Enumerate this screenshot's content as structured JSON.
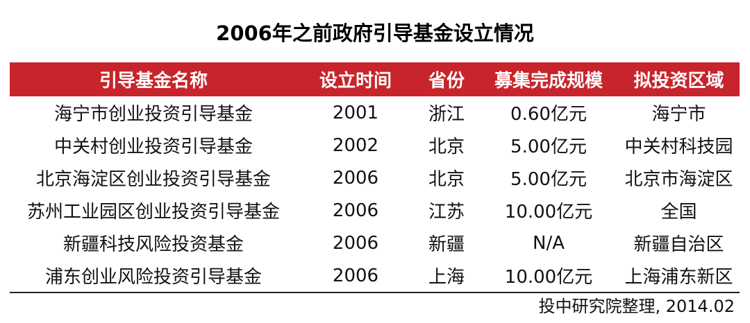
{
  "title": "2006年之前政府引导基金设立情况",
  "table": {
    "headers": [
      "引导基金名称",
      "设立时间",
      "省份",
      "募集完成规模",
      "拟投资区域"
    ],
    "rows": [
      [
        "海宁市创业投资引导基金",
        "2001",
        "浙江",
        "0.60亿元",
        "海宁市"
      ],
      [
        "中关村创业投资引导基金",
        "2002",
        "北京",
        "5.00亿元",
        "中关村科技园"
      ],
      [
        "北京海淀区创业投资引导基金",
        "2006",
        "北京",
        "5.00亿元",
        "北京市海淀区"
      ],
      [
        "苏州工业园区创业投资引导基金",
        "2006",
        "江苏",
        "10.00亿元",
        "全国"
      ],
      [
        "新疆科技风险投资基金",
        "2006",
        "新疆",
        "N/A",
        "新疆自治区"
      ],
      [
        "浦东创业风险投资引导基金",
        "2006",
        "上海",
        "10.00亿元",
        "上海浦东新区"
      ]
    ]
  },
  "source": "投中研究院整理, 2014.02",
  "colors": {
    "header_background": "#c8242b",
    "header_text": "#ffffff"
  }
}
